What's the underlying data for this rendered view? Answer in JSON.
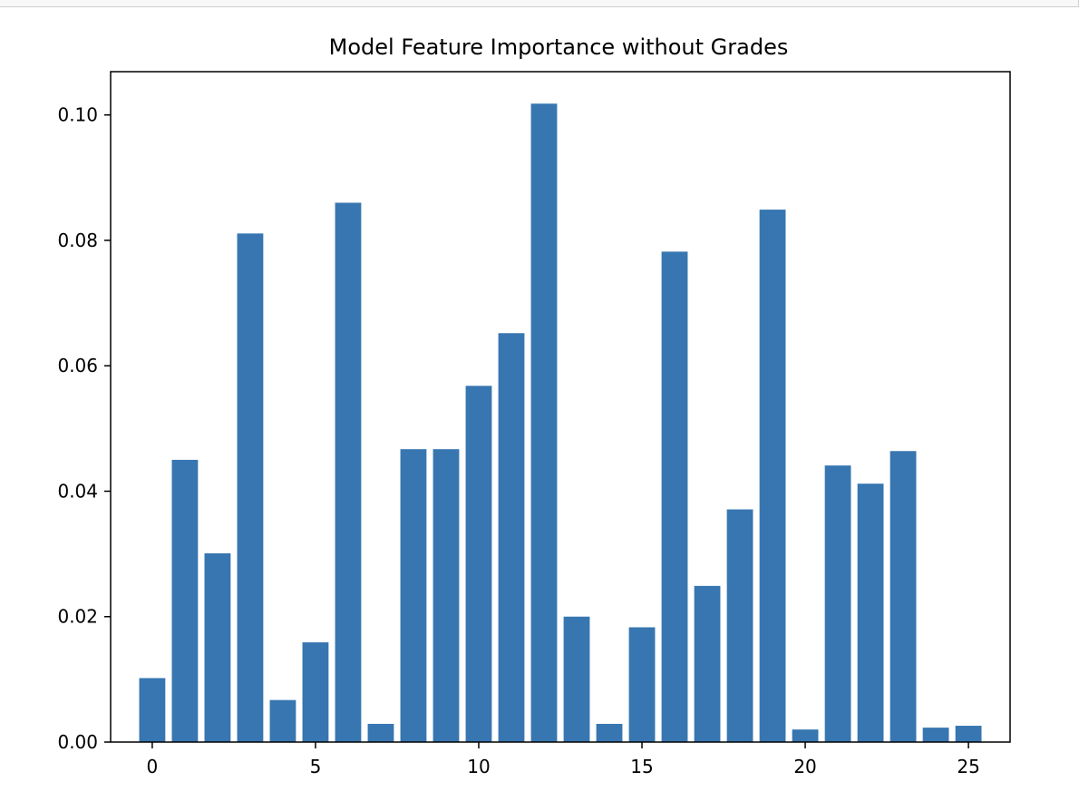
{
  "chart_data": {
    "type": "bar",
    "title": "Model Feature Importance without Grades",
    "xlabel": "",
    "ylabel": "",
    "categories": [
      0,
      1,
      2,
      3,
      4,
      5,
      6,
      7,
      8,
      9,
      10,
      11,
      12,
      13,
      14,
      15,
      16,
      17,
      18,
      19,
      20,
      21,
      22,
      23,
      24,
      25
    ],
    "values": [
      0.0102,
      0.045,
      0.0301,
      0.0811,
      0.0067,
      0.0159,
      0.086,
      0.0029,
      0.0467,
      0.0467,
      0.0568,
      0.0652,
      0.1018,
      0.02,
      0.0029,
      0.0183,
      0.0782,
      0.0249,
      0.0371,
      0.0849,
      0.002,
      0.0441,
      0.0412,
      0.0464,
      0.0023,
      0.0026
    ],
    "xlim": [
      -1.275,
      26.275
    ],
    "ylim": [
      0,
      0.1069
    ],
    "xticks": [
      0,
      5,
      10,
      15,
      20,
      25
    ],
    "xtick_labels": [
      "0",
      "5",
      "10",
      "15",
      "20",
      "25"
    ],
    "yticks": [
      0,
      0.02,
      0.04,
      0.06,
      0.08,
      0.1
    ],
    "ytick_labels": [
      "0.00",
      "0.02",
      "0.04",
      "0.06",
      "0.08",
      "0.10"
    ],
    "bar_color": "#3776b0",
    "grid": false,
    "legend": "none"
  }
}
